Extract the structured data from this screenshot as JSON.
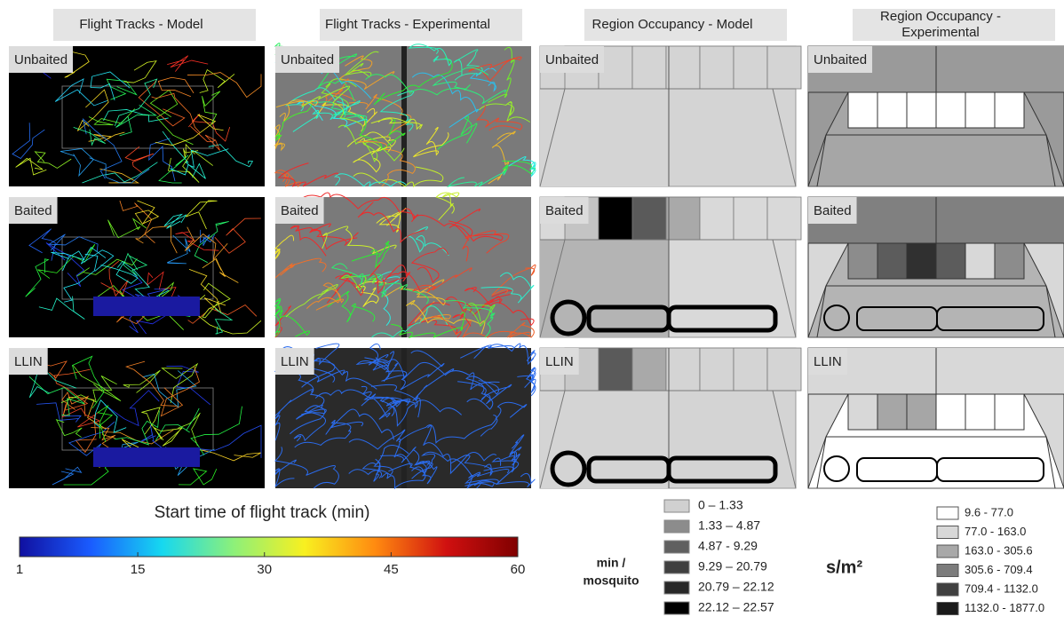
{
  "headers": [
    "Flight Tracks - Model",
    "Flight Tracks - Experimental",
    "Region Occupancy - Model",
    [
      "Region Occupancy -",
      "Experimental"
    ]
  ],
  "rows": [
    "Unbaited",
    "Baited",
    "LLIN"
  ],
  "occupancy_model": [
    {
      "base": "#d4d4d4",
      "left": "#d4d4d4",
      "cells": [
        "#d4d4d4",
        "#d4d4d4",
        "#d4d4d4",
        "#d4d4d4",
        "#d4d4d4",
        "#d4d4d4",
        "#d4d4d4"
      ]
    },
    {
      "base": "#d9d9d9",
      "left": "#b4b4b4",
      "cells": [
        "#c4c4c4",
        "#000000",
        "#5a5a5a",
        "#a9a9a9",
        "#d9d9d9",
        "#d9d9d9",
        "#d9d9d9"
      ]
    },
    {
      "base": "#d4d4d4",
      "left": "#d4d4d4",
      "cells": [
        "#c8c8c8",
        "#5a5a5a",
        "#a9a9a9",
        "#d4d4d4",
        "#d4d4d4",
        "#d4d4d4",
        "#d4d4d4"
      ]
    }
  ],
  "occupancy_experimental": [
    {
      "wall": "#9a9a9a",
      "side": "#9a9a9a",
      "floor": "#a6a6a6",
      "cells": [
        "#ffffff",
        "#ffffff",
        "#ffffff",
        "#ffffff",
        "#ffffff",
        "#ffffff"
      ]
    },
    {
      "wall": "#808080",
      "side": "#d8d8d8",
      "floor": "#b4b4b4",
      "cells": [
        "#8c8c8c",
        "#5c5c5c",
        "#303030",
        "#5c5c5c",
        "#d8d8d8",
        "#8c8c8c"
      ]
    },
    {
      "wall": "#d8d8d8",
      "side": "#d8d8d8",
      "floor": "#ffffff",
      "cells": [
        "#d8d8d8",
        "#a6a6a6",
        "#a6a6a6",
        "#ffffff",
        "#ffffff",
        "#ffffff"
      ]
    }
  ],
  "colorbar": {
    "title": "Start time of flight track (min)",
    "lim": [
      1,
      60
    ],
    "ticks": [
      1,
      15,
      30,
      45,
      60
    ],
    "colors": [
      "#1010a0",
      "#1a5cff",
      "#16d8f0",
      "#8cf07a",
      "#f8f020",
      "#ff8a10",
      "#d01010",
      "#800000"
    ]
  },
  "legend_model": {
    "title": [
      "min /",
      "mosquito"
    ],
    "items": [
      {
        "label": "0 – 1.33",
        "color": "#d0d0d0"
      },
      {
        "label": "1.33 – 4.87",
        "color": "#8c8c8c"
      },
      {
        "label": "4.87 - 9.29",
        "color": "#606060"
      },
      {
        "label": "9.29 – 20.79",
        "color": "#404040"
      },
      {
        "label": "20.79 – 22.12",
        "color": "#282828"
      },
      {
        "label": "22.12 – 22.57",
        "color": "#000000"
      }
    ]
  },
  "legend_experimental": {
    "title": "s/m²",
    "items": [
      {
        "label": "9.6 - 77.0",
        "color": "#ffffff"
      },
      {
        "label": "77.0 - 163.0",
        "color": "#d8d8d8"
      },
      {
        "label": "163.0 - 305.6",
        "color": "#a8a8a8"
      },
      {
        "label": "305.6 - 709.4",
        "color": "#7c7c7c"
      },
      {
        "label": "709.4 - 1132.0",
        "color": "#404040"
      },
      {
        "label": "1132.0 - 1877.0",
        "color": "#1a1a1a"
      }
    ]
  }
}
